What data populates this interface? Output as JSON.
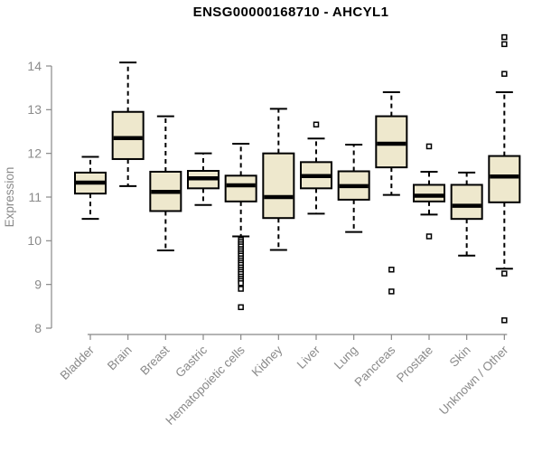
{
  "chart_data": {
    "type": "boxplot",
    "title": "ENSG00000168710 - AHCYL1",
    "xlabel": "",
    "ylabel": "Expression",
    "ylim": [
      8,
      14
    ],
    "yticks": [
      8,
      9,
      10,
      11,
      12,
      13,
      14
    ],
    "grid": false,
    "legend": "none",
    "categories": [
      "Bladder",
      "Brain",
      "Breast",
      "Gastric",
      "Hematopoietic cells",
      "Kidney",
      "Liver",
      "Lung",
      "Pancreas",
      "Prostate",
      "Skin",
      "Unknown / Other"
    ],
    "boxes": [
      {
        "category": "Bladder",
        "whisker_low": 10.5,
        "q1": 11.08,
        "median": 11.33,
        "q3": 11.56,
        "whisker_high": 11.92,
        "outliers": []
      },
      {
        "category": "Brain",
        "whisker_low": 11.25,
        "q1": 11.87,
        "median": 12.35,
        "q3": 12.95,
        "whisker_high": 14.08,
        "outliers": []
      },
      {
        "category": "Breast",
        "whisker_low": 9.78,
        "q1": 10.68,
        "median": 11.12,
        "q3": 11.58,
        "whisker_high": 12.85,
        "outliers": []
      },
      {
        "category": "Gastric",
        "whisker_low": 10.82,
        "q1": 11.2,
        "median": 11.43,
        "q3": 11.6,
        "whisker_high": 12.0,
        "outliers": []
      },
      {
        "category": "Hematopoietic cells",
        "whisker_low": 10.1,
        "q1": 10.9,
        "median": 11.27,
        "q3": 11.49,
        "whisker_high": 12.22,
        "outliers": [
          10.02,
          9.97,
          9.92,
          9.87,
          9.81,
          9.76,
          9.71,
          9.66,
          9.6,
          9.55,
          9.5,
          9.45,
          9.39,
          9.34,
          9.29,
          9.24,
          9.18,
          9.13,
          9.08,
          9.03,
          8.9,
          8.48
        ]
      },
      {
        "category": "Kidney",
        "whisker_low": 9.79,
        "q1": 10.52,
        "median": 11.0,
        "q3": 12.0,
        "whisker_high": 13.02,
        "outliers": []
      },
      {
        "category": "Liver",
        "whisker_low": 10.62,
        "q1": 11.2,
        "median": 11.48,
        "q3": 11.8,
        "whisker_high": 12.34,
        "outliers": [
          12.66
        ]
      },
      {
        "category": "Lung",
        "whisker_low": 10.2,
        "q1": 10.94,
        "median": 11.25,
        "q3": 11.59,
        "whisker_high": 12.2,
        "outliers": []
      },
      {
        "category": "Pancreas",
        "whisker_low": 11.05,
        "q1": 11.68,
        "median": 12.22,
        "q3": 12.85,
        "whisker_high": 13.4,
        "outliers": [
          9.34,
          8.84
        ]
      },
      {
        "category": "Prostate",
        "whisker_low": 10.6,
        "q1": 10.9,
        "median": 11.03,
        "q3": 11.28,
        "whisker_high": 11.58,
        "outliers": [
          12.16,
          10.1
        ]
      },
      {
        "category": "Skin",
        "whisker_low": 9.66,
        "q1": 10.5,
        "median": 10.8,
        "q3": 11.28,
        "whisker_high": 11.56,
        "outliers": []
      },
      {
        "category": "Unknown / Other",
        "whisker_low": 9.36,
        "q1": 10.88,
        "median": 11.47,
        "q3": 11.94,
        "whisker_high": 13.4,
        "outliers": [
          14.66,
          14.5,
          13.82,
          9.25,
          8.18
        ]
      }
    ],
    "colors": {
      "box_fill": "#EEE8CD",
      "box_stroke": "#000000",
      "median": "#000000",
      "whisker": "#000000",
      "outlier_fill": "#FFFFFF",
      "axis": "#888888",
      "label_text": "#8A8A8A",
      "title_text": "#000000",
      "background": "#FFFFFF"
    }
  }
}
